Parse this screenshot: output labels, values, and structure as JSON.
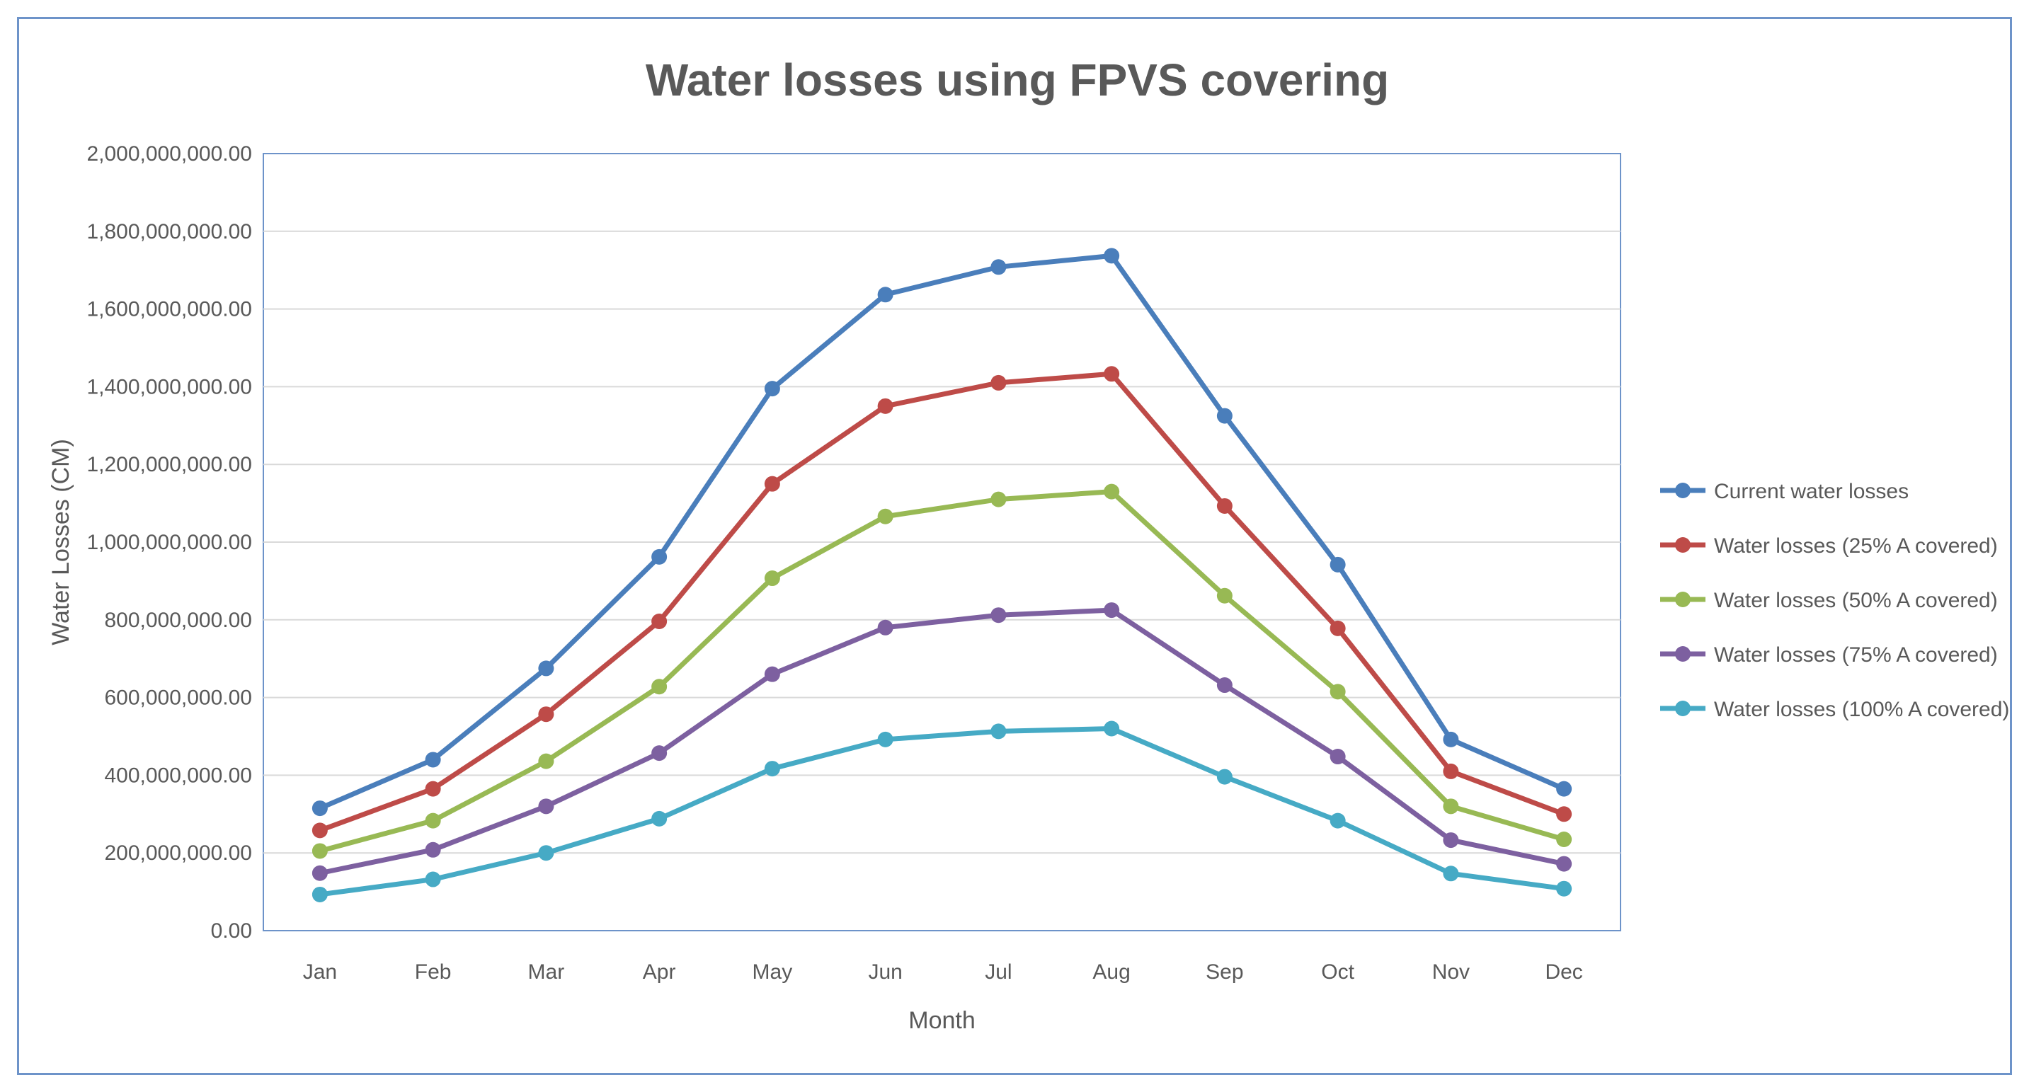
{
  "chart_data": {
    "type": "line",
    "title": "Water losses using FPVS covering",
    "xlabel": "Month",
    "ylabel": "Water Losses (CM)",
    "ylim": [
      0,
      2000000000
    ],
    "ytick_step": 200000000,
    "ytick_labels": [
      "0.00",
      "200,000,000.00",
      "400,000,000.00",
      "600,000,000.00",
      "800,000,000.00",
      "1,000,000,000.00",
      "1,200,000,000.00",
      "1,400,000,000.00",
      "1,600,000,000.00",
      "1,800,000,000.00",
      "2,000,000,000.00"
    ],
    "grid": true,
    "legend_position": "right",
    "categories": [
      "Jan",
      "Feb",
      "Mar",
      "Apr",
      "May",
      "Jun",
      "Jul",
      "Aug",
      "Sep",
      "Oct",
      "Nov",
      "Dec"
    ],
    "series": [
      {
        "name": "Current water losses",
        "color": "#4a7ebb",
        "values": [
          315000000,
          440000000,
          675000000,
          962000000,
          1395000000,
          1637000000,
          1708000000,
          1737000000,
          1325000000,
          942000000,
          492000000,
          365000000
        ]
      },
      {
        "name": "Water losses (25% A covered)",
        "color": "#be4b48",
        "values": [
          258000000,
          365000000,
          557000000,
          796000000,
          1150000000,
          1350000000,
          1410000000,
          1433000000,
          1093000000,
          778000000,
          410000000,
          300000000
        ]
      },
      {
        "name": "Water losses (50% A covered)",
        "color": "#98b954",
        "values": [
          205000000,
          283000000,
          436000000,
          628000000,
          907000000,
          1066000000,
          1110000000,
          1130000000,
          862000000,
          615000000,
          320000000,
          235000000
        ]
      },
      {
        "name": "Water losses (75% A covered)",
        "color": "#7d60a0",
        "values": [
          148000000,
          208000000,
          320000000,
          457000000,
          660000000,
          780000000,
          812000000,
          825000000,
          632000000,
          448000000,
          233000000,
          172000000
        ]
      },
      {
        "name": "Water losses (100% A covered)",
        "color": "#46aac5",
        "values": [
          93000000,
          132000000,
          200000000,
          288000000,
          417000000,
          492000000,
          513000000,
          520000000,
          396000000,
          283000000,
          147000000,
          108000000
        ]
      }
    ]
  }
}
